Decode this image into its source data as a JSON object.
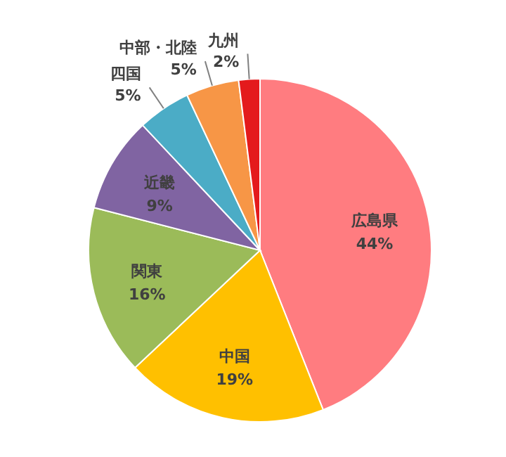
{
  "chart_data": {
    "type": "pie",
    "categories": [
      "広島県",
      "中国",
      "関東",
      "近畿",
      "四国",
      "中部・北陸",
      "九州"
    ],
    "values": [
      44,
      19,
      16,
      9,
      5,
      5,
      2
    ],
    "value_labels": [
      "44%",
      "19%",
      "16%",
      "9%",
      "5%",
      "5%",
      "2%"
    ],
    "colors": [
      "#ff7c80",
      "#ffc000",
      "#9bbb59",
      "#8064a2",
      "#4bacc6",
      "#f79646",
      "#e41a1c"
    ],
    "legend": false
  }
}
